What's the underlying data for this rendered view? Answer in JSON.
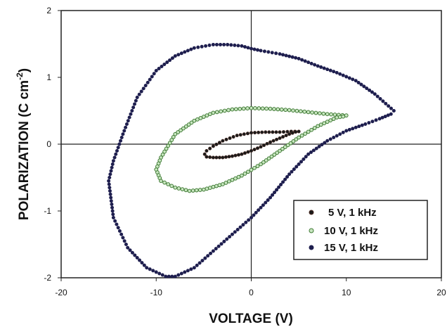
{
  "chart_data": {
    "type": "scatter",
    "xlabel": "VOLTAGE (V)",
    "ylabel_main": "POLARIZATION (C cm",
    "ylabel_sup": "-2",
    "ylabel_close": ")",
    "xlim": [
      -20,
      20
    ],
    "ylim": [
      -2,
      2
    ],
    "x_ticks": [
      -20,
      -10,
      0,
      10,
      20
    ],
    "x_tick_labels": [
      "-20",
      "-10",
      "0",
      "10",
      "20"
    ],
    "y_ticks": [
      -2,
      -1,
      0,
      1,
      2
    ],
    "y_tick_labels": [
      "-2",
      "-1",
      "0",
      "1",
      "2"
    ],
    "grid": false,
    "zero_lines": true,
    "legend_position": "bottom-right",
    "series": [
      {
        "name": "5 V, 1 kHz",
        "color": "#4a2a22",
        "marker_fill": "#1a1a1a",
        "x": [
          5,
          4.2,
          3,
          1.5,
          0,
          -1.5,
          -3,
          -4,
          -4.7,
          -4.9,
          -4.7,
          -4,
          -3,
          -2,
          -1,
          0,
          1,
          2,
          3,
          4,
          5
        ],
        "y": [
          0.19,
          0.19,
          0.18,
          0.18,
          0.17,
          0.13,
          0.05,
          -0.03,
          -0.1,
          -0.15,
          -0.19,
          -0.2,
          -0.2,
          -0.18,
          -0.15,
          -0.1,
          -0.04,
          0.03,
          0.09,
          0.15,
          0.2
        ]
      },
      {
        "name": "10 V, 1 kHz",
        "color": "#3f7a34",
        "marker_fill": "#c8e6c0",
        "x": [
          10,
          8,
          6,
          4,
          2,
          0,
          -2,
          -4,
          -6,
          -8,
          -9.5,
          -10,
          -9.5,
          -8,
          -6.5,
          -5,
          -3,
          -1,
          1,
          3,
          5,
          7,
          9,
          10
        ],
        "y": [
          0.43,
          0.45,
          0.48,
          0.51,
          0.53,
          0.54,
          0.52,
          0.47,
          0.35,
          0.15,
          -0.2,
          -0.38,
          -0.55,
          -0.65,
          -0.7,
          -0.68,
          -0.6,
          -0.47,
          -0.3,
          -0.1,
          0.1,
          0.27,
          0.4,
          0.42
        ]
      },
      {
        "name": "15 V, 1 kHz",
        "color": "#1e1e4e",
        "marker_fill": "#1e1e4e",
        "x": [
          15,
          13,
          11,
          9,
          7,
          5,
          3,
          1,
          0,
          -1,
          -2.5,
          -4,
          -6,
          -8,
          -10,
          -12,
          -13.5,
          -14.5,
          -15,
          -14.5,
          -13,
          -11,
          -9,
          -8,
          -6,
          -4,
          -2,
          0,
          2,
          4,
          6,
          8,
          10,
          12,
          13.5,
          14.7,
          15
        ],
        "y": [
          0.5,
          0.75,
          0.95,
          1.07,
          1.17,
          1.28,
          1.35,
          1.4,
          1.43,
          1.47,
          1.49,
          1.49,
          1.44,
          1.32,
          1.1,
          0.7,
          0.15,
          -0.25,
          -0.55,
          -1.1,
          -1.55,
          -1.85,
          -1.98,
          -1.98,
          -1.85,
          -1.6,
          -1.35,
          -1.1,
          -0.8,
          -0.45,
          -0.15,
          0.05,
          0.2,
          0.3,
          0.38,
          0.45,
          0.5
        ]
      }
    ]
  }
}
